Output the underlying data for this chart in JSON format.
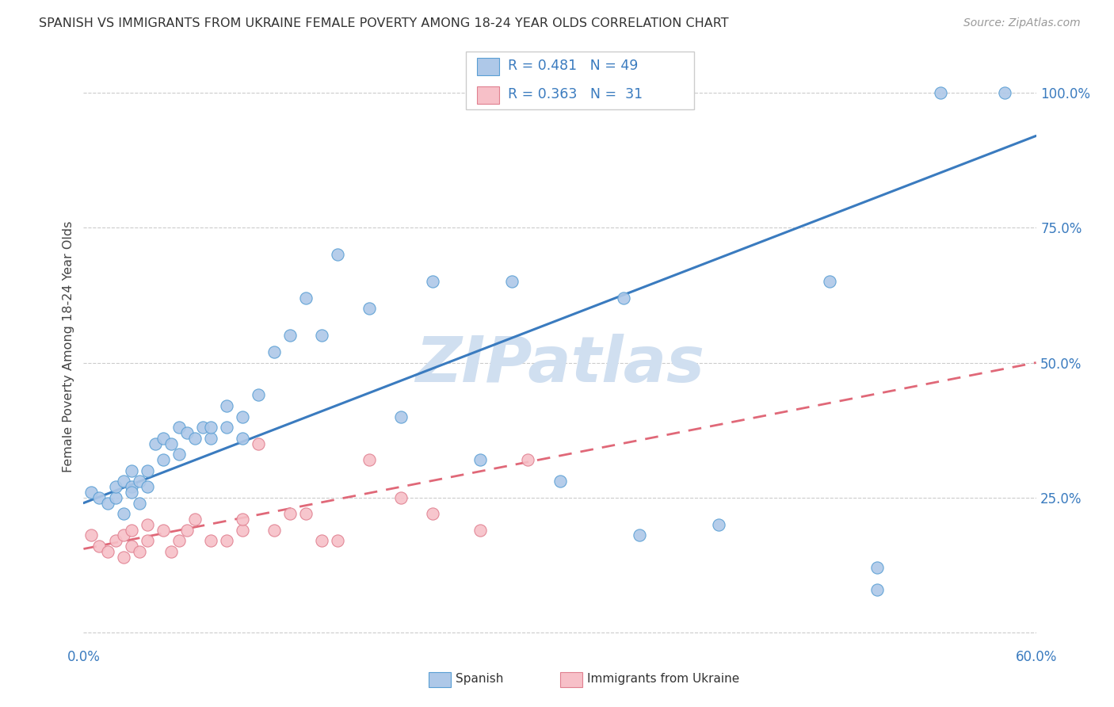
{
  "title": "SPANISH VS IMMIGRANTS FROM UKRAINE FEMALE POVERTY AMONG 18-24 YEAR OLDS CORRELATION CHART",
  "source": "Source: ZipAtlas.com",
  "ylabel": "Female Poverty Among 18-24 Year Olds",
  "xlim": [
    0.0,
    0.6
  ],
  "ylim": [
    -0.02,
    1.08
  ],
  "xticks": [
    0.0,
    0.1,
    0.2,
    0.3,
    0.4,
    0.5,
    0.6
  ],
  "xticklabels": [
    "0.0%",
    "",
    "",
    "",
    "",
    "",
    "60.0%"
  ],
  "yticks_right": [
    0.0,
    0.25,
    0.5,
    0.75,
    1.0
  ],
  "yticklabels_right": [
    "",
    "25.0%",
    "50.0%",
    "75.0%",
    "100.0%"
  ],
  "blue_color": "#aec8e8",
  "blue_edge": "#5a9fd4",
  "blue_line": "#3a7bbf",
  "pink_color": "#f7c0c8",
  "pink_edge": "#e08090",
  "pink_line": "#e06878",
  "watermark": "ZIPatlas",
  "watermark_color": "#d0dff0",
  "spanish_x": [
    0.005,
    0.01,
    0.015,
    0.02,
    0.02,
    0.025,
    0.025,
    0.03,
    0.03,
    0.03,
    0.035,
    0.035,
    0.04,
    0.04,
    0.045,
    0.05,
    0.05,
    0.055,
    0.06,
    0.06,
    0.065,
    0.07,
    0.075,
    0.08,
    0.08,
    0.09,
    0.09,
    0.1,
    0.1,
    0.11,
    0.12,
    0.13,
    0.14,
    0.15,
    0.16,
    0.18,
    0.2,
    0.22,
    0.25,
    0.27,
    0.3,
    0.34,
    0.35,
    0.4,
    0.47,
    0.5,
    0.5,
    0.54,
    0.58
  ],
  "spanish_y": [
    0.26,
    0.25,
    0.24,
    0.25,
    0.27,
    0.28,
    0.22,
    0.27,
    0.26,
    0.3,
    0.24,
    0.28,
    0.3,
    0.27,
    0.35,
    0.32,
    0.36,
    0.35,
    0.38,
    0.33,
    0.37,
    0.36,
    0.38,
    0.36,
    0.38,
    0.42,
    0.38,
    0.4,
    0.36,
    0.44,
    0.52,
    0.55,
    0.62,
    0.55,
    0.7,
    0.6,
    0.4,
    0.65,
    0.32,
    0.65,
    0.28,
    0.62,
    0.18,
    0.2,
    0.65,
    0.08,
    0.12,
    1.0,
    1.0
  ],
  "ukraine_x": [
    0.005,
    0.01,
    0.015,
    0.02,
    0.025,
    0.025,
    0.03,
    0.03,
    0.035,
    0.04,
    0.04,
    0.05,
    0.055,
    0.06,
    0.065,
    0.07,
    0.08,
    0.09,
    0.1,
    0.1,
    0.11,
    0.12,
    0.13,
    0.14,
    0.15,
    0.16,
    0.18,
    0.2,
    0.22,
    0.25,
    0.28
  ],
  "ukraine_y": [
    0.18,
    0.16,
    0.15,
    0.17,
    0.14,
    0.18,
    0.16,
    0.19,
    0.15,
    0.2,
    0.17,
    0.19,
    0.15,
    0.17,
    0.19,
    0.21,
    0.17,
    0.17,
    0.19,
    0.21,
    0.35,
    0.19,
    0.22,
    0.22,
    0.17,
    0.17,
    0.32,
    0.25,
    0.22,
    0.19,
    0.32
  ],
  "blue_trend_x0": 0.0,
  "blue_trend_y0": 0.24,
  "blue_trend_x1": 0.6,
  "blue_trend_y1": 0.92,
  "pink_trend_x0": 0.0,
  "pink_trend_y0": 0.155,
  "pink_trend_x1": 0.6,
  "pink_trend_y1": 0.5
}
